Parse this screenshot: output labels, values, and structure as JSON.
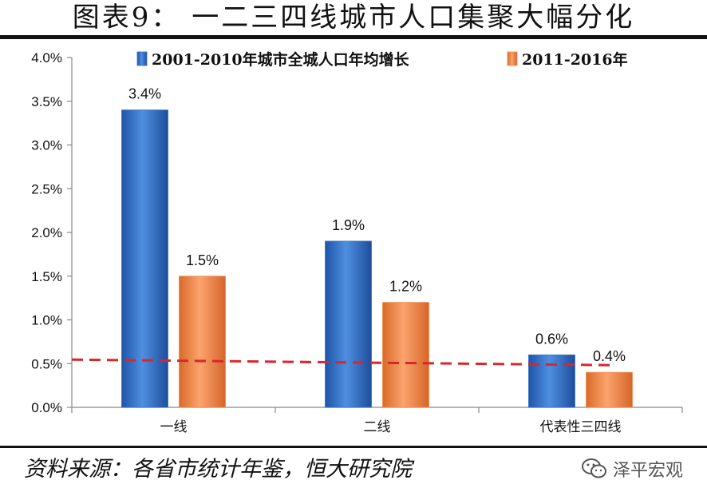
{
  "title": "图表9：  一二三四线城市人口集聚大幅分化",
  "source": "资料来源：各省市统计年鉴，恒大研究院",
  "watermark": "泽平宏观",
  "chart_data": {
    "type": "bar",
    "categories": [
      "一线",
      "二线",
      "代表性三四线"
    ],
    "series": [
      {
        "name": "2001-2010年城市全城人口年均增长",
        "values": [
          3.4,
          1.9,
          0.6
        ],
        "labels": [
          "3.4%",
          "1.9%",
          "0.6%"
        ],
        "color": "#2F6FC9"
      },
      {
        "name": "2011-2016年",
        "values": [
          1.5,
          1.2,
          0.4
        ],
        "labels": [
          "1.5%",
          "1.2%",
          "0.4%"
        ],
        "color": "#F08A4B"
      }
    ],
    "ylim": [
      0,
      4.0
    ],
    "yticks": [
      "0.0%",
      "0.5%",
      "1.0%",
      "1.5%",
      "2.0%",
      "2.5%",
      "3.0%",
      "3.5%",
      "4.0%"
    ],
    "reference_line": {
      "value": 0.5,
      "style": "dashed",
      "color": "#D8262D"
    },
    "legend_position": "top",
    "grid": false
  }
}
